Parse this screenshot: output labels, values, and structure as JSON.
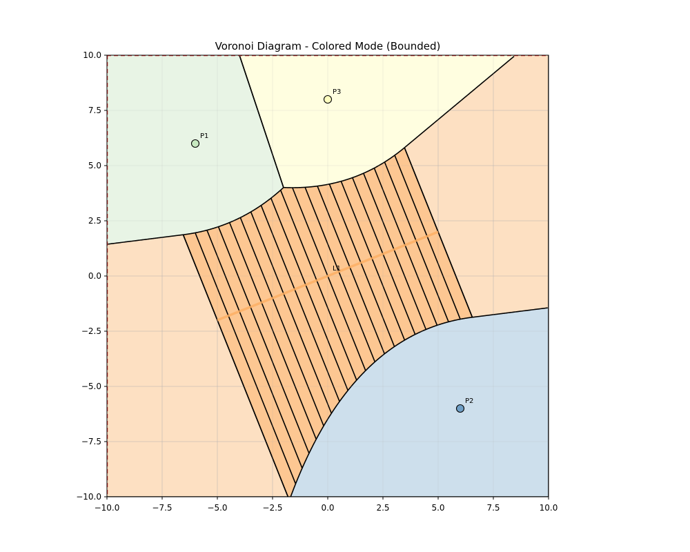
{
  "chart_data": {
    "type": "voronoi",
    "title": "Voronoi Diagram - Colored Mode (Bounded)",
    "xlim": [
      -10,
      10
    ],
    "ylim": [
      -10,
      10
    ],
    "xticks": [
      -10.0,
      -7.5,
      -5.0,
      -2.5,
      0.0,
      2.5,
      5.0,
      7.5,
      10.0
    ],
    "yticks": [
      -10.0,
      -7.5,
      -5.0,
      -2.5,
      0.0,
      2.5,
      5.0,
      7.5,
      10.0
    ],
    "grid": true,
    "sites": [
      {
        "label": "P1",
        "x": -6,
        "y": 6,
        "color": "#c7e9c0"
      },
      {
        "label": "P2",
        "x": 6,
        "y": -6,
        "color": "#6f9fc6"
      },
      {
        "label": "P3",
        "x": 0,
        "y": 8,
        "color": "#ffffbf"
      }
    ],
    "segments": [
      {
        "label": "L1",
        "x1": -5,
        "y1": -2,
        "x2": 5,
        "y2": 2,
        "color": "#fdae61"
      }
    ],
    "colors": {
      "P1_region": "#e8f4e5",
      "P2_region": "#cddfec",
      "P3_region": "#fffee0",
      "L1_region": "#fde0c2",
      "L1_hatched_band": "#fdc792",
      "edge": "#000000",
      "boundary": "#d62728"
    }
  }
}
